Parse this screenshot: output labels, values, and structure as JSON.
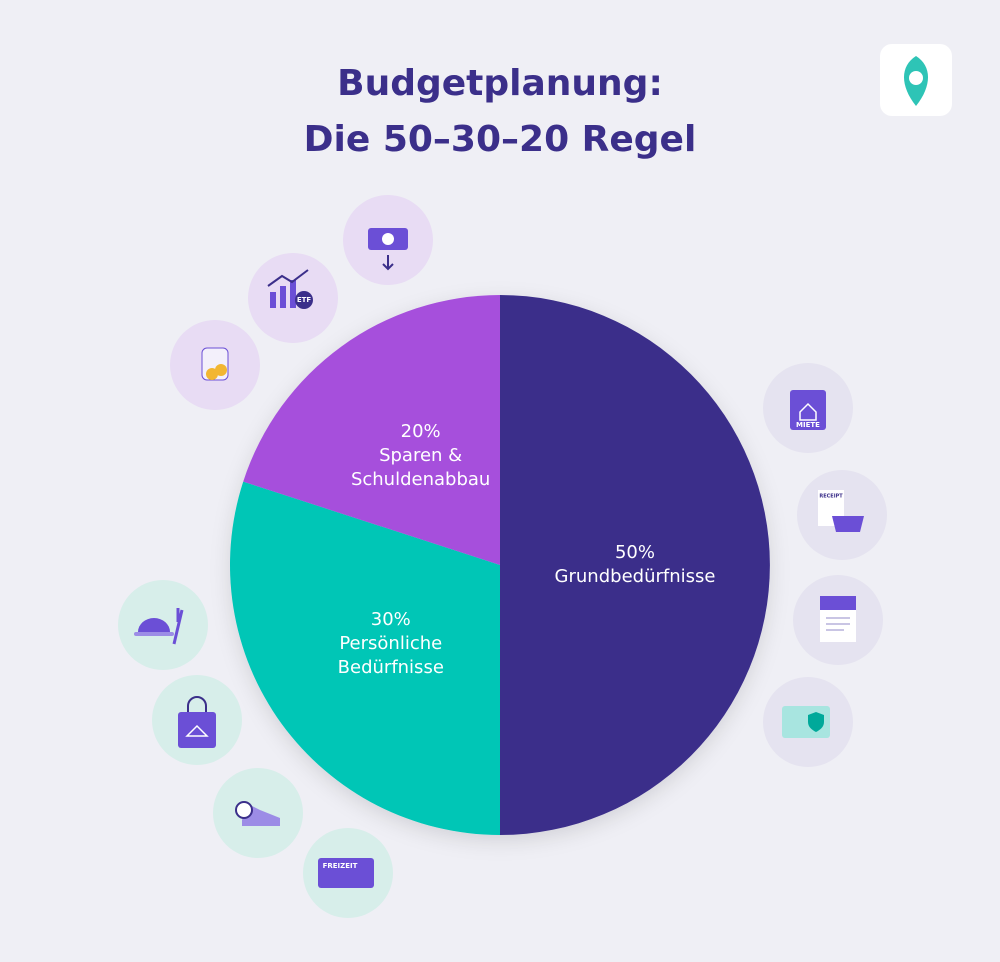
{
  "chart_data": {
    "type": "pie",
    "title": "Budgetplanung:\nDie 50–30–20 Regel",
    "categories": [
      "Grundbedürfnisse",
      "Persönliche Bedürfnisse",
      "Sparen & Schuldenabbau"
    ],
    "values": [
      50,
      30,
      20
    ],
    "value_labels": [
      "50%",
      "30%",
      "20%"
    ],
    "colors": [
      "#3b2f8a",
      "#00c6b6",
      "#a64fdc"
    ]
  },
  "icon_labels": [
    "ETF",
    "MIETE",
    "RECEIPT",
    "FREIZEIT"
  ]
}
